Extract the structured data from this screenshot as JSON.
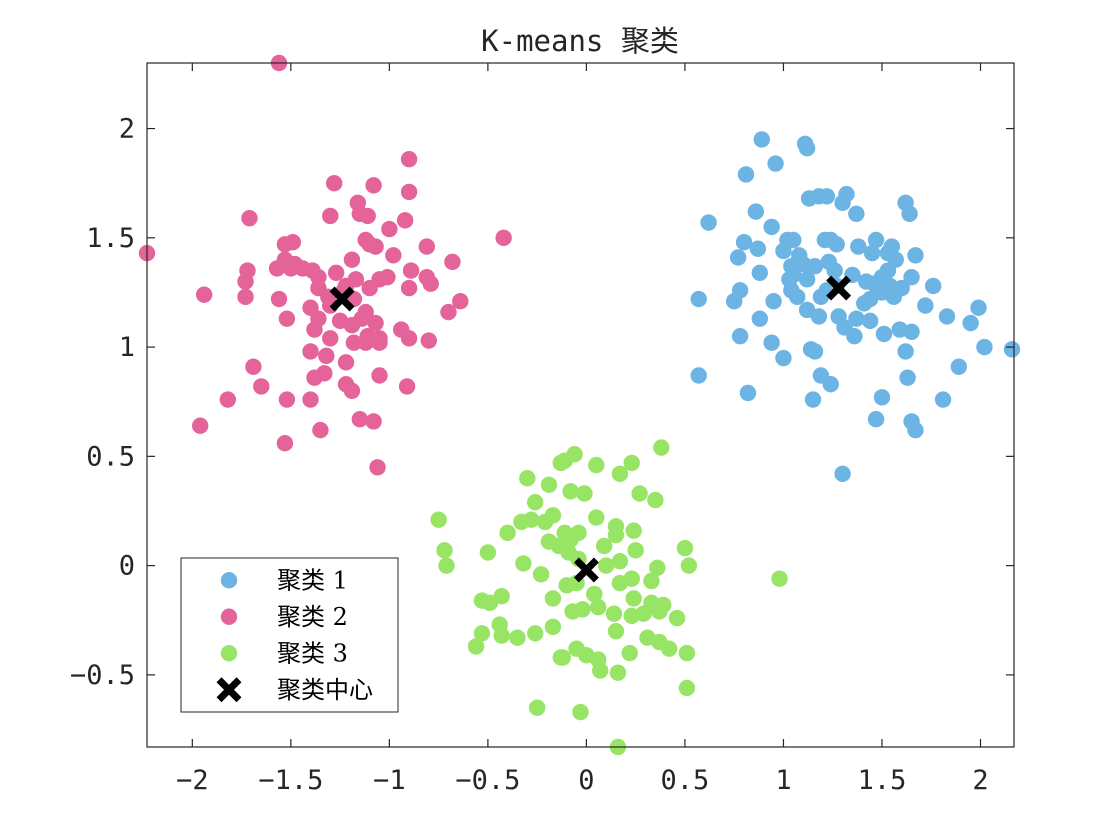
{
  "chart_data": {
    "type": "scatter",
    "title": "K-means 聚类",
    "xlabel": "",
    "ylabel": "",
    "xlim": [
      -2.23,
      2.17
    ],
    "ylim": [
      -0.83,
      2.3
    ],
    "grid": false,
    "legend_position": "bottom-left",
    "xticks": [
      -2,
      -1.5,
      -1,
      -0.5,
      0,
      0.5,
      1,
      1.5,
      2
    ],
    "xtick_labels": [
      "−2",
      "−1.5",
      "−1",
      "−0.5",
      "0",
      "0.5",
      "1",
      "1.5",
      "2"
    ],
    "yticks": [
      -0.5,
      0,
      0.5,
      1,
      1.5,
      2
    ],
    "ytick_labels": [
      "−0.5",
      "0",
      "0.5",
      "1",
      "1.5",
      "2"
    ],
    "series": [
      {
        "name": "聚类 1",
        "color": "#6cb4e4",
        "marker": "circle",
        "points": [
          [
            0.89,
            1.95
          ],
          [
            1.11,
            1.93
          ],
          [
            1.12,
            1.91
          ],
          [
            0.96,
            1.84
          ],
          [
            0.81,
            1.79
          ],
          [
            1.13,
            1.68
          ],
          [
            1.18,
            1.69
          ],
          [
            1.22,
            1.69
          ],
          [
            1.32,
            1.7
          ],
          [
            1.3,
            1.66
          ],
          [
            1.62,
            1.66
          ],
          [
            1.64,
            1.61
          ],
          [
            1.37,
            1.61
          ],
          [
            0.62,
            1.57
          ],
          [
            0.86,
            1.62
          ],
          [
            0.94,
            1.55
          ],
          [
            1.02,
            1.49
          ],
          [
            1.05,
            1.49
          ],
          [
            1.21,
            1.49
          ],
          [
            1.24,
            1.49
          ],
          [
            1.27,
            1.47
          ],
          [
            1.38,
            1.46
          ],
          [
            1.47,
            1.49
          ],
          [
            1.55,
            1.46
          ],
          [
            0.8,
            1.48
          ],
          [
            0.87,
            1.45
          ],
          [
            1.0,
            1.44
          ],
          [
            1.08,
            1.42
          ],
          [
            1.04,
            1.37
          ],
          [
            1.1,
            1.38
          ],
          [
            1.16,
            1.37
          ],
          [
            1.23,
            1.39
          ],
          [
            1.45,
            1.43
          ],
          [
            1.53,
            1.43
          ],
          [
            1.57,
            1.4
          ],
          [
            1.67,
            1.42
          ],
          [
            0.77,
            1.41
          ],
          [
            0.88,
            1.34
          ],
          [
            1.05,
            1.33
          ],
          [
            1.12,
            1.31
          ],
          [
            1.03,
            1.31
          ],
          [
            1.26,
            1.35
          ],
          [
            1.35,
            1.33
          ],
          [
            1.42,
            1.3
          ],
          [
            1.46,
            1.29
          ],
          [
            1.5,
            1.32
          ],
          [
            1.54,
            1.28
          ],
          [
            1.6,
            1.27
          ],
          [
            1.65,
            1.32
          ],
          [
            1.76,
            1.28
          ],
          [
            0.78,
            1.26
          ],
          [
            1.04,
            1.26
          ],
          [
            1.07,
            1.23
          ],
          [
            1.19,
            1.23
          ],
          [
            1.22,
            1.26
          ],
          [
            1.44,
            1.22
          ],
          [
            1.5,
            1.25
          ],
          [
            1.56,
            1.23
          ],
          [
            0.57,
            1.22
          ],
          [
            0.75,
            1.21
          ],
          [
            0.95,
            1.21
          ],
          [
            1.72,
            1.19
          ],
          [
            1.99,
            1.18
          ],
          [
            1.12,
            1.17
          ],
          [
            1.18,
            1.14
          ],
          [
            1.28,
            1.14
          ],
          [
            1.37,
            1.13
          ],
          [
            1.44,
            1.12
          ],
          [
            1.59,
            1.08
          ],
          [
            1.65,
            1.07
          ],
          [
            1.83,
            1.14
          ],
          [
            1.95,
            1.11
          ],
          [
            0.88,
            1.13
          ],
          [
            1.31,
            1.09
          ],
          [
            1.36,
            1.05
          ],
          [
            1.51,
            1.06
          ],
          [
            0.78,
            1.05
          ],
          [
            0.94,
            1.02
          ],
          [
            1.14,
            0.99
          ],
          [
            1.16,
            0.98
          ],
          [
            1.62,
            0.98
          ],
          [
            2.02,
            1.0
          ],
          [
            2.16,
            0.99
          ],
          [
            1.0,
            0.95
          ],
          [
            1.89,
            0.91
          ],
          [
            0.57,
            0.87
          ],
          [
            1.19,
            0.87
          ],
          [
            1.24,
            0.83
          ],
          [
            1.63,
            0.86
          ],
          [
            0.82,
            0.79
          ],
          [
            1.15,
            0.76
          ],
          [
            1.5,
            0.77
          ],
          [
            1.81,
            0.76
          ],
          [
            1.47,
            0.67
          ],
          [
            1.65,
            0.66
          ],
          [
            1.67,
            0.62
          ],
          [
            1.3,
            0.42
          ],
          [
            1.27,
            1.28
          ],
          [
            1.53,
            1.35
          ],
          [
            1.41,
            1.2
          ]
        ]
      },
      {
        "name": "聚类 2",
        "color": "#e4649a",
        "marker": "circle",
        "points": [
          [
            -1.56,
            2.3
          ],
          [
            -0.9,
            1.86
          ],
          [
            -1.28,
            1.75
          ],
          [
            -1.08,
            1.74
          ],
          [
            -0.9,
            1.71
          ],
          [
            -1.16,
            1.66
          ],
          [
            -1.71,
            1.59
          ],
          [
            -1.3,
            1.6
          ],
          [
            -1.15,
            1.61
          ],
          [
            -1.11,
            1.6
          ],
          [
            -0.92,
            1.58
          ],
          [
            -0.42,
            1.5
          ],
          [
            -2.23,
            1.43
          ],
          [
            -1.53,
            1.47
          ],
          [
            -1.49,
            1.48
          ],
          [
            -1.12,
            1.49
          ],
          [
            -1.0,
            1.54
          ],
          [
            -1.1,
            1.47
          ],
          [
            -1.07,
            1.46
          ],
          [
            -0.81,
            1.46
          ],
          [
            -1.53,
            1.4
          ],
          [
            -1.48,
            1.38
          ],
          [
            -1.44,
            1.36
          ],
          [
            -1.39,
            1.35
          ],
          [
            -1.36,
            1.32
          ],
          [
            -1.19,
            1.4
          ],
          [
            -0.98,
            1.42
          ],
          [
            -0.68,
            1.39
          ],
          [
            -1.72,
            1.35
          ],
          [
            -1.57,
            1.36
          ],
          [
            -1.5,
            1.36
          ],
          [
            -1.27,
            1.34
          ],
          [
            -1.17,
            1.31
          ],
          [
            -1.01,
            1.32
          ],
          [
            -0.89,
            1.35
          ],
          [
            -1.73,
            1.3
          ],
          [
            -1.36,
            1.27
          ],
          [
            -1.31,
            1.23
          ],
          [
            -1.22,
            1.28
          ],
          [
            -1.1,
            1.27
          ],
          [
            -1.05,
            1.31
          ],
          [
            -0.81,
            1.32
          ],
          [
            -0.79,
            1.29
          ],
          [
            -0.9,
            1.27
          ],
          [
            -1.94,
            1.24
          ],
          [
            -1.73,
            1.23
          ],
          [
            -1.56,
            1.22
          ],
          [
            -1.18,
            1.22
          ],
          [
            -1.4,
            1.18
          ],
          [
            -1.12,
            1.16
          ],
          [
            -1.36,
            1.13
          ],
          [
            -1.19,
            1.1
          ],
          [
            -1.14,
            1.13
          ],
          [
            -1.07,
            1.11
          ],
          [
            -1.25,
            1.12
          ],
          [
            -1.52,
            1.13
          ],
          [
            -0.7,
            1.16
          ],
          [
            -0.64,
            1.21
          ],
          [
            -1.38,
            1.08
          ],
          [
            -1.3,
            1.04
          ],
          [
            -1.11,
            1.05
          ],
          [
            -1.05,
            1.04
          ],
          [
            -0.94,
            1.08
          ],
          [
            -0.9,
            1.04
          ],
          [
            -1.18,
            1.02
          ],
          [
            -1.12,
            1.02
          ],
          [
            -1.05,
            1.02
          ],
          [
            -0.8,
            1.03
          ],
          [
            -1.4,
            0.98
          ],
          [
            -1.32,
            0.96
          ],
          [
            -1.22,
            0.93
          ],
          [
            -1.69,
            0.91
          ],
          [
            -1.33,
            0.88
          ],
          [
            -1.38,
            0.86
          ],
          [
            -1.05,
            0.87
          ],
          [
            -1.65,
            0.82
          ],
          [
            -1.22,
            0.83
          ],
          [
            -1.19,
            0.8
          ],
          [
            -0.91,
            0.82
          ],
          [
            -1.82,
            0.76
          ],
          [
            -1.52,
            0.76
          ],
          [
            -1.4,
            0.76
          ],
          [
            -1.15,
            0.67
          ],
          [
            -1.08,
            0.66
          ],
          [
            -1.96,
            0.64
          ],
          [
            -1.35,
            0.62
          ],
          [
            -1.53,
            0.56
          ],
          [
            -1.06,
            0.45
          ],
          [
            -1.23,
            1.26
          ],
          [
            -1.3,
            1.19
          ]
        ]
      },
      {
        "name": "聚类 3",
        "color": "#98e465",
        "marker": "circle",
        "points": [
          [
            0.38,
            0.54
          ],
          [
            -0.11,
            0.48
          ],
          [
            -0.06,
            0.51
          ],
          [
            0.05,
            0.46
          ],
          [
            0.23,
            0.47
          ],
          [
            0.17,
            0.42
          ],
          [
            -0.13,
            0.47
          ],
          [
            -0.3,
            0.4
          ],
          [
            -0.19,
            0.37
          ],
          [
            -0.08,
            0.34
          ],
          [
            -0.01,
            0.33
          ],
          [
            0.35,
            0.3
          ],
          [
            0.27,
            0.33
          ],
          [
            -0.26,
            0.29
          ],
          [
            0.05,
            0.22
          ],
          [
            -0.17,
            0.23
          ],
          [
            -0.21,
            0.2
          ],
          [
            -0.28,
            0.21
          ],
          [
            -0.33,
            0.2
          ],
          [
            -0.75,
            0.21
          ],
          [
            0.15,
            0.18
          ],
          [
            0.24,
            0.16
          ],
          [
            -0.4,
            0.15
          ],
          [
            -0.11,
            0.15
          ],
          [
            -0.04,
            0.15
          ],
          [
            -0.08,
            0.12
          ],
          [
            -0.14,
            0.09
          ],
          [
            -0.19,
            0.11
          ],
          [
            0.15,
            0.14
          ],
          [
            0.09,
            0.09
          ],
          [
            0.25,
            0.07
          ],
          [
            0.5,
            0.08
          ],
          [
            -0.72,
            0.07
          ],
          [
            -0.5,
            0.06
          ],
          [
            -0.09,
            0.06
          ],
          [
            -0.04,
            0.03
          ],
          [
            0.17,
            0.02
          ],
          [
            0.1,
            0.0
          ],
          [
            0.52,
            0.0
          ],
          [
            -0.71,
            0.0
          ],
          [
            -0.32,
            0.01
          ],
          [
            -0.23,
            -0.04
          ],
          [
            0.36,
            -0.01
          ],
          [
            -0.1,
            -0.09
          ],
          [
            -0.05,
            -0.08
          ],
          [
            0.17,
            -0.08
          ],
          [
            0.23,
            -0.06
          ],
          [
            0.33,
            -0.07
          ],
          [
            0.98,
            -0.06
          ],
          [
            0.04,
            -0.13
          ],
          [
            -0.17,
            -0.15
          ],
          [
            0.24,
            -0.15
          ],
          [
            -0.53,
            -0.16
          ],
          [
            -0.49,
            -0.17
          ],
          [
            -0.43,
            -0.14
          ],
          [
            0.33,
            -0.17
          ],
          [
            0.39,
            -0.18
          ],
          [
            -0.07,
            -0.21
          ],
          [
            -0.02,
            -0.2
          ],
          [
            0.06,
            -0.19
          ],
          [
            0.14,
            -0.22
          ],
          [
            0.29,
            -0.22
          ],
          [
            0.23,
            -0.23
          ],
          [
            0.37,
            -0.21
          ],
          [
            0.46,
            -0.24
          ],
          [
            -0.44,
            -0.27
          ],
          [
            -0.17,
            -0.28
          ],
          [
            0.15,
            -0.3
          ],
          [
            -0.53,
            -0.31
          ],
          [
            -0.43,
            -0.32
          ],
          [
            -0.35,
            -0.33
          ],
          [
            -0.26,
            -0.31
          ],
          [
            0.31,
            -0.33
          ],
          [
            0.37,
            -0.35
          ],
          [
            0.42,
            -0.38
          ],
          [
            -0.56,
            -0.37
          ],
          [
            -0.05,
            -0.38
          ],
          [
            0.0,
            -0.41
          ],
          [
            0.06,
            -0.43
          ],
          [
            0.22,
            -0.4
          ],
          [
            0.51,
            -0.4
          ],
          [
            -0.13,
            -0.42
          ],
          [
            0.07,
            -0.48
          ],
          [
            0.16,
            -0.49
          ],
          [
            0.51,
            -0.56
          ],
          [
            -0.25,
            -0.65
          ],
          [
            -0.03,
            -0.67
          ],
          [
            0.16,
            -0.83
          ],
          [
            -0.12,
            -0.42
          ],
          [
            0.04,
            -0.13
          ]
        ]
      },
      {
        "name": "聚类中心",
        "color": "#000000",
        "marker": "x",
        "points": [
          [
            1.28,
            1.27
          ],
          [
            -1.24,
            1.22
          ],
          [
            0.0,
            -0.02
          ]
        ]
      }
    ]
  }
}
